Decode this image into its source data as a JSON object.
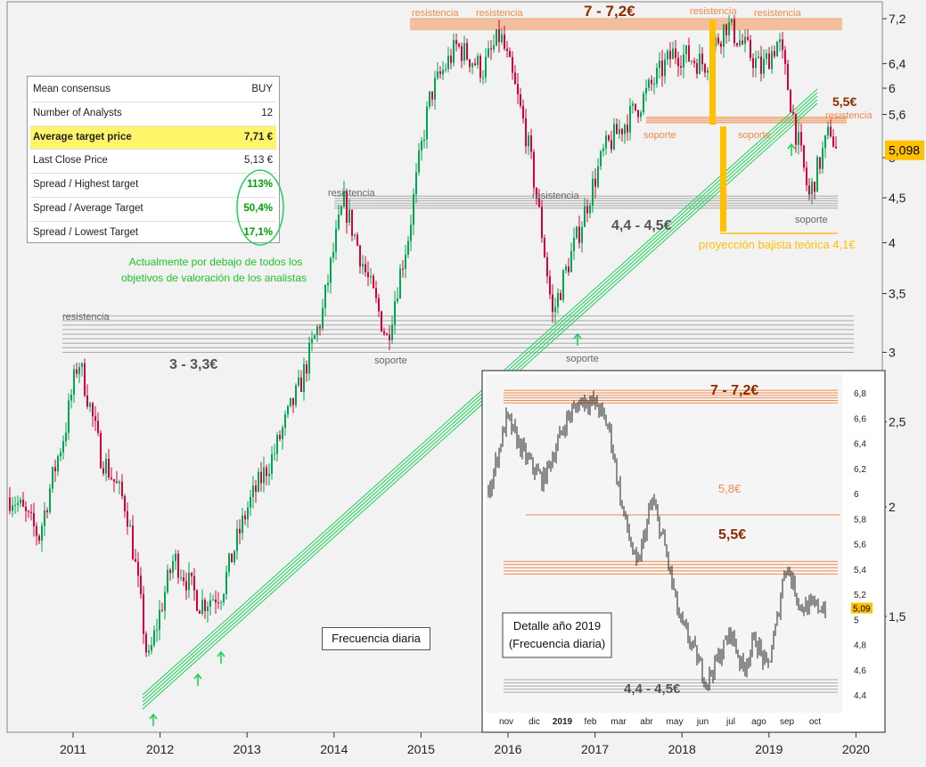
{
  "consensus_table": {
    "rows": [
      {
        "label": "Mean consensus",
        "value": "BUY"
      },
      {
        "label": "Number of Analysts",
        "value": "12"
      },
      {
        "label": "Average target price",
        "value": "7,71 €",
        "highlight": true
      },
      {
        "label": "Last Close Price",
        "value": "5,13 €"
      },
      {
        "label": "Spread / Highest target",
        "value": "113%",
        "green": true
      },
      {
        "label": "Spread / Average Target",
        "value": "50,4%",
        "green": true
      },
      {
        "label": "Spread / Lowest Target",
        "value": "17,1%",
        "green": true
      }
    ]
  },
  "annotations": {
    "analyst_note": [
      "Actualmente por debajo de todos los",
      "objetivos de valoración de los analistas"
    ],
    "frequency": "Frecuencia diaria",
    "detail": [
      "Detalle año 2019",
      "(Frecuencia diaria)"
    ],
    "resistencia": "resistencia",
    "soporte": "soporte",
    "zone_72": "7 - 7,2€",
    "zone_445": "4,4 - 4,5€",
    "zone_33": "3 - 3,3€",
    "level_55": "5,5€",
    "level_58": "5,8€",
    "projection": "proyección bajista teórica 4,1€"
  },
  "colors": {
    "up": "#00a651",
    "down": "#d8003a",
    "resistance": "#f08a4b",
    "support_band": "#a9a9a9",
    "trend": "#1fd15a",
    "highlight": "#ffc000",
    "label_orange": "#c87000"
  },
  "chart_data": [
    {
      "type": "candlestick",
      "scale": "log",
      "ylim": [
        1.2,
        7.4
      ],
      "yticks": [
        "7,2",
        "6,4",
        "6",
        "5,6",
        "5",
        "4,5",
        "4",
        "3,5",
        "3",
        "2,5",
        "2",
        "1,5"
      ],
      "ytick_values": [
        7.2,
        6.4,
        6,
        5.6,
        5,
        4.5,
        4,
        3.5,
        3,
        2.5,
        2,
        1.5
      ],
      "xticks": [
        "2011",
        "2012",
        "2013",
        "2014",
        "2015",
        "2016",
        "2017",
        "2018",
        "2019",
        "2020"
      ],
      "xtick_values": [
        2011,
        2012,
        2013,
        2014,
        2015,
        2016,
        2017,
        2018,
        2019,
        2020
      ],
      "last_price": "5,098",
      "last_value": 5.098,
      "price_path": [
        [
          2010.3,
          2.05
        ],
        [
          2010.6,
          1.85
        ],
        [
          2010.9,
          2.45
        ],
        [
          2011.05,
          2.95
        ],
        [
          2011.3,
          2.3
        ],
        [
          2011.6,
          2.0
        ],
        [
          2011.85,
          1.32
        ],
        [
          2012.15,
          1.75
        ],
        [
          2012.45,
          1.55
        ],
        [
          2012.7,
          1.6
        ],
        [
          2013.0,
          2.0
        ],
        [
          2013.3,
          2.3
        ],
        [
          2013.6,
          2.75
        ],
        [
          2013.85,
          3.3
        ],
        [
          2014.1,
          4.45
        ],
        [
          2014.35,
          3.7
        ],
        [
          2014.6,
          3.1
        ],
        [
          2014.85,
          4.1
        ],
        [
          2015.1,
          5.9
        ],
        [
          2015.4,
          6.7
        ],
        [
          2015.7,
          6.3
        ],
        [
          2015.9,
          6.9
        ],
        [
          2016.2,
          5.3
        ],
        [
          2016.5,
          3.3
        ],
        [
          2016.8,
          4.1
        ],
        [
          2017.1,
          5.1
        ],
        [
          2017.5,
          5.75
        ],
        [
          2017.9,
          6.6
        ],
        [
          2018.25,
          6.4
        ],
        [
          2018.5,
          7.1
        ],
        [
          2018.9,
          6.3
        ],
        [
          2019.1,
          6.8
        ],
        [
          2019.3,
          5.35
        ],
        [
          2019.45,
          4.5
        ],
        [
          2019.7,
          5.4
        ],
        [
          2019.75,
          5.1
        ]
      ],
      "zones": [
        {
          "label": "7 - 7,2€",
          "from": 7.0,
          "to": 7.2
        },
        {
          "label": "4,4 - 4,5€",
          "from": 4.4,
          "to": 4.5
        },
        {
          "label": "3 - 3,3€",
          "from": 3.0,
          "to": 3.3
        },
        {
          "label": "5,5€",
          "value": 5.5
        }
      ]
    },
    {
      "type": "candlestick",
      "title": "Detalle año 2019 (Frecuencia diaria)",
      "ylim": [
        4.3,
        6.9
      ],
      "yticks": [
        "6,8",
        "6,6",
        "6,4",
        "6,2",
        "6",
        "5,8",
        "5,6",
        "5,4",
        "5,2",
        "5",
        "4,8",
        "4,6",
        "4,4"
      ],
      "ytick_values": [
        6.8,
        6.6,
        6.4,
        6.2,
        6.0,
        5.8,
        5.6,
        5.4,
        5.2,
        5.0,
        4.8,
        4.6,
        4.4
      ],
      "xticks": [
        "nov",
        "dic",
        "2019",
        "feb",
        "mar",
        "abr",
        "may",
        "jun",
        "jul",
        "ago",
        "sep",
        "oct"
      ],
      "last_price": "5,09",
      "last_value": 5.09,
      "price_path": [
        [
          0,
          6.0
        ],
        [
          0.6,
          6.6
        ],
        [
          1.2,
          6.3
        ],
        [
          1.8,
          6.1
        ],
        [
          2.6,
          6.6
        ],
        [
          3.1,
          6.75
        ],
        [
          3.6,
          6.7
        ],
        [
          4.0,
          6.5
        ],
        [
          4.4,
          5.9
        ],
        [
          4.9,
          5.4
        ],
        [
          5.4,
          5.95
        ],
        [
          5.8,
          5.6
        ],
        [
          6.3,
          5.0
        ],
        [
          6.7,
          4.8
        ],
        [
          7.2,
          4.5
        ],
        [
          7.6,
          4.7
        ],
        [
          8.0,
          4.9
        ],
        [
          8.4,
          4.6
        ],
        [
          8.8,
          4.85
        ],
        [
          9.2,
          4.6
        ],
        [
          9.5,
          4.95
        ],
        [
          9.8,
          5.45
        ],
        [
          10.1,
          5.25
        ],
        [
          10.3,
          5.1
        ]
      ],
      "zones": [
        {
          "label": "7 - 7,2€",
          "from": 6.72,
          "to": 6.82
        },
        {
          "label": "5,8€",
          "value": 5.83
        },
        {
          "label": "5,5€",
          "from": 5.36,
          "to": 5.46
        },
        {
          "label": "4,4 - 4,5€",
          "from": 4.42,
          "to": 4.52
        }
      ]
    }
  ]
}
